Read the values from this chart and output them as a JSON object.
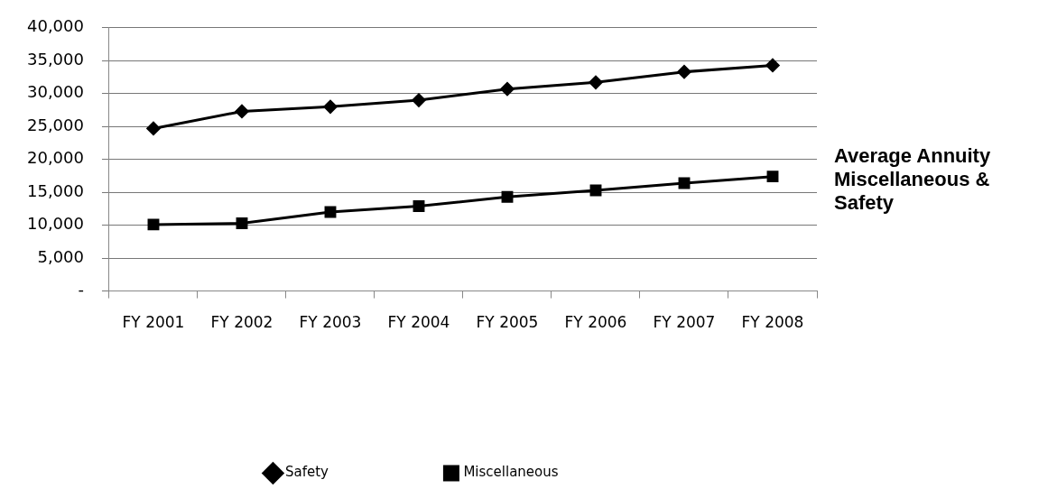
{
  "chart_data": {
    "type": "line",
    "title": "Average Annuity Miscellaneous & Safety",
    "categories": [
      "FY 2001",
      "FY 2002",
      "FY 2003",
      "FY 2004",
      "FY 2005",
      "FY 2006",
      "FY 2007",
      "FY 2008"
    ],
    "series": [
      {
        "name": "Safety",
        "color": "#000000",
        "marker": "diamond",
        "values": [
          24700,
          27300,
          28000,
          29000,
          30700,
          31700,
          33300,
          34300
        ]
      },
      {
        "name": "Miscellaneous",
        "color": "#000000",
        "marker": "square",
        "values": [
          10100,
          10300,
          12000,
          12900,
          14300,
          15300,
          16400,
          17400
        ]
      }
    ],
    "ylim": [
      0,
      40000
    ],
    "yticks": [
      {
        "value": 0,
        "label": "-"
      },
      {
        "value": 5000,
        "label": "5,000"
      },
      {
        "value": 10000,
        "label": "10,000"
      },
      {
        "value": 15000,
        "label": "15,000"
      },
      {
        "value": 20000,
        "label": "20,000"
      },
      {
        "value": 25000,
        "label": "25,000"
      },
      {
        "value": 30000,
        "label": "30,000"
      },
      {
        "value": 35000,
        "label": "35,000"
      },
      {
        "value": 40000,
        "label": "40,000"
      }
    ],
    "grid": "y",
    "legend": "bottom",
    "line_style": "solid"
  }
}
